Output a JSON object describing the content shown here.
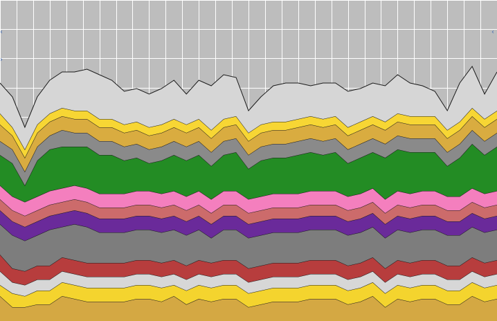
{
  "chart_data": {
    "type": "area",
    "stacked": true,
    "title": "",
    "xlabel": "",
    "ylabel": "",
    "x_count": 41,
    "ylim": [
      0,
      116
    ],
    "grid": true,
    "grid_color": "#ffffff",
    "background": "#bdbdbd",
    "outline_color": "#1a1a1a",
    "series": [
      {
        "color": "#d4a843",
        "values": [
          9,
          5,
          5,
          6,
          6,
          9,
          8,
          7,
          7,
          7,
          7,
          8,
          8,
          7,
          9,
          6,
          8,
          7,
          8,
          8,
          5,
          6,
          7,
          7,
          7,
          8,
          8,
          8,
          6,
          7,
          9,
          5,
          8,
          7,
          8,
          8,
          6,
          6,
          9,
          7,
          8
        ]
      },
      {
        "color": "#f4d42e",
        "values": [
          4,
          5,
          4,
          5,
          5,
          5,
          5,
          5,
          5,
          5,
          5,
          5,
          5,
          5,
          4,
          5,
          5,
          5,
          5,
          5,
          5,
          5,
          5,
          5,
          5,
          5,
          5,
          5,
          5,
          5,
          5,
          5,
          5,
          5,
          5,
          5,
          5,
          5,
          5,
          5,
          5
        ]
      },
      {
        "color": "#d7d7d7",
        "values": [
          5,
          4,
          4,
          4,
          4,
          4,
          4,
          4,
          4,
          4,
          4,
          4,
          4,
          4,
          4,
          4,
          4,
          4,
          4,
          4,
          4,
          4,
          4,
          4,
          4,
          4,
          4,
          4,
          4,
          4,
          4,
          4,
          4,
          4,
          4,
          4,
          4,
          4,
          4,
          4,
          4
        ]
      },
      {
        "color": "#b73d3d",
        "values": [
          6,
          5,
          5,
          5,
          5,
          5,
          5,
          5,
          5,
          5,
          5,
          5,
          5,
          5,
          5,
          5,
          5,
          5,
          5,
          5,
          5,
          5,
          5,
          5,
          5,
          5,
          5,
          5,
          5,
          5,
          5,
          5,
          5,
          5,
          5,
          5,
          5,
          5,
          5,
          5,
          5
        ]
      },
      {
        "color": "#7d7d7d",
        "values": [
          11,
          12,
          11,
          11,
          13,
          11,
          13,
          13,
          11,
          11,
          11,
          11,
          11,
          11,
          11,
          11,
          11,
          9,
          11,
          11,
          11,
          11,
          11,
          11,
          11,
          11,
          11,
          11,
          11,
          11,
          11,
          11,
          11,
          11,
          11,
          11,
          11,
          11,
          11,
          11,
          11
        ]
      },
      {
        "color": "#6a2a9a",
        "values": [
          5,
          5,
          5,
          5,
          5,
          5,
          5,
          5,
          5,
          5,
          5,
          5,
          5,
          5,
          5,
          5,
          5,
          5,
          5,
          5,
          5,
          5,
          5,
          5,
          5,
          5,
          5,
          5,
          5,
          5,
          5,
          5,
          5,
          5,
          5,
          5,
          5,
          5,
          5,
          5,
          5
        ]
      },
      {
        "color": "#cc6b6b",
        "values": [
          4,
          4,
          4,
          4,
          4,
          4,
          4,
          4,
          4,
          4,
          4,
          4,
          4,
          4,
          4,
          4,
          4,
          4,
          4,
          4,
          4,
          4,
          4,
          4,
          4,
          4,
          4,
          4,
          4,
          4,
          4,
          4,
          4,
          4,
          4,
          4,
          4,
          4,
          4,
          4,
          4
        ]
      },
      {
        "color": "#f47fbe",
        "values": [
          5,
          5,
          5,
          5,
          5,
          5,
          5,
          5,
          5,
          5,
          5,
          5,
          5,
          5,
          5,
          5,
          5,
          5,
          5,
          5,
          5,
          5,
          5,
          5,
          5,
          5,
          5,
          5,
          5,
          5,
          5,
          5,
          5,
          5,
          5,
          5,
          5,
          5,
          5,
          5,
          5
        ]
      },
      {
        "color": "#238c24",
        "values": [
          11,
          12,
          6,
          13,
          15,
          15,
          14,
          15,
          14,
          14,
          12,
          12,
          10,
          12,
          13,
          13,
          13,
          12,
          13,
          14,
          11,
          13,
          13,
          13,
          14,
          14,
          13,
          14,
          12,
          13,
          13,
          15,
          15,
          15,
          14,
          14,
          11,
          14,
          16,
          14,
          16
        ]
      },
      {
        "color": "#8a8a8a",
        "values": [
          5,
          5,
          5,
          5,
          5,
          6,
          5,
          5,
          5,
          5,
          5,
          5,
          5,
          5,
          5,
          5,
          5,
          5,
          5,
          5,
          5,
          5,
          5,
          5,
          5,
          5,
          5,
          5,
          5,
          5,
          5,
          5,
          5,
          5,
          5,
          5,
          5,
          5,
          5,
          5,
          5
        ]
      },
      {
        "color": "#d9ac40",
        "values": [
          6,
          5,
          5,
          5,
          5,
          5,
          5,
          5,
          5,
          5,
          5,
          5,
          5,
          5,
          5,
          5,
          5,
          5,
          5,
          5,
          5,
          5,
          5,
          5,
          5,
          5,
          5,
          5,
          5,
          5,
          5,
          5,
          5,
          5,
          5,
          5,
          5,
          5,
          5,
          5,
          5
        ]
      },
      {
        "color": "#f7d634",
        "values": [
          4,
          3,
          3,
          3,
          3,
          3,
          3,
          3,
          3,
          3,
          3,
          3,
          3,
          3,
          3,
          3,
          3,
          3,
          3,
          3,
          3,
          3,
          3,
          3,
          3,
          3,
          3,
          3,
          3,
          3,
          3,
          3,
          3,
          3,
          3,
          3,
          3,
          3,
          3,
          3,
          3
        ]
      },
      {
        "color": "#d6d6d6",
        "values": [
          11,
          11,
          8,
          10,
          12,
          13,
          14,
          15,
          16,
          14,
          12,
          12,
          12,
          13,
          14,
          11,
          14,
          16,
          16,
          14,
          8,
          10,
          13,
          14,
          13,
          11,
          13,
          12,
          13,
          12,
          12,
          13,
          14,
          12,
          11,
          9,
          7,
          14,
          15,
          9,
          14
        ]
      }
    ]
  }
}
